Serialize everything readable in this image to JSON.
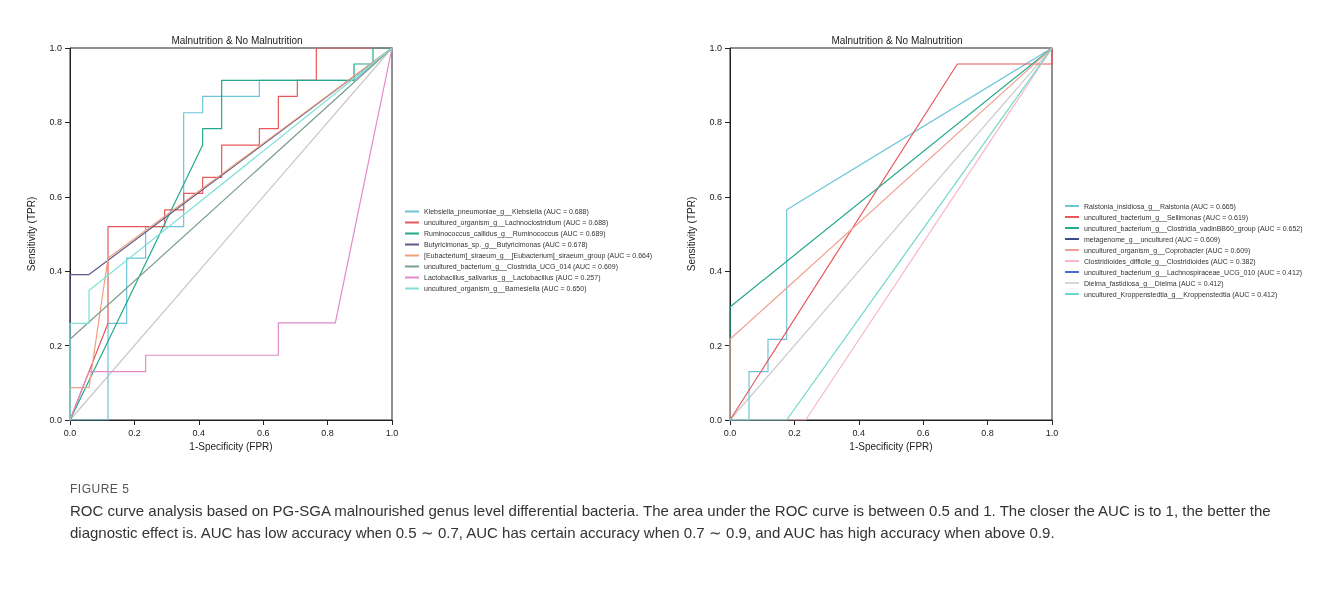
{
  "chart_data": [
    {
      "type": "line",
      "title": "Malnutrition & No Malnutrition",
      "xlabel": "1-Specificity (FPR)",
      "ylabel": "Sensitivity (TPR)",
      "xlim": [
        0,
        1
      ],
      "ylim": [
        0,
        1
      ],
      "xticks": [
        {
          "value": 0,
          "label": "0.0"
        },
        {
          "value": 0.2,
          "label": "0.2"
        },
        {
          "value": 0.4,
          "label": "0.4"
        },
        {
          "value": 0.6,
          "label": "0.6"
        },
        {
          "value": 0.8,
          "label": "0.8"
        },
        {
          "value": 1,
          "label": "1.0"
        }
      ],
      "yticks": [
        {
          "value": 0,
          "label": "0.0"
        },
        {
          "value": 0.2,
          "label": "0.2"
        },
        {
          "value": 0.4,
          "label": "0.4"
        },
        {
          "value": 0.6,
          "label": "0.6"
        },
        {
          "value": 0.8,
          "label": "0.8"
        },
        {
          "value": 1,
          "label": "1.0"
        }
      ],
      "grid": false,
      "legend": "right",
      "marker": "none",
      "line_style": "solid",
      "annotations": [
        "FIGURE 5",
        "ROC curve analysis based on PG-SGA malnourished genus level differential bacteria. The area under the ROC curve is between 0.5 and 1. The closer the AUC is to 1, the better the diagnostic effect is. AUC has low accuracy when 0.5 ∼ 0.7, AUC has certain accuracy when 0.7 ∼ 0.9, and AUC has high accuracy when above 0.9."
      ],
      "series": [
        {
          "color": "#c8c8c8",
          "x": [
            0,
            1
          ],
          "values": [
            0,
            1
          ]
        },
        {
          "name": "Klebsiella_pneumoniae_g__Klebsiella (AUC = 0.688)",
          "color": "#6cc4d8",
          "x": [
            0,
            0.118,
            0.118,
            0.176,
            0.176,
            0.235,
            0.235,
            0.353,
            0.353,
            0.412,
            0.412,
            0.588,
            0.588,
            0.882,
            1
          ],
          "values": [
            0,
            0,
            0.26,
            0.26,
            0.435,
            0.435,
            0.52,
            0.52,
            0.826,
            0.826,
            0.87,
            0.87,
            0.913,
            0.913,
            1
          ]
        },
        {
          "name": "uncultured_organism_g__Lachnoclostridium (AUC = 0.688)",
          "color": "#e8585a",
          "x": [
            0,
            0.118,
            0.118,
            0.294,
            0.294,
            0.353,
            0.353,
            0.412,
            0.412,
            0.471,
            0.471,
            0.588,
            0.588,
            0.647,
            0.647,
            0.706,
            0.706,
            0.765,
            0.765,
            1
          ],
          "values": [
            0,
            0.26,
            0.52,
            0.52,
            0.565,
            0.565,
            0.609,
            0.609,
            0.652,
            0.652,
            0.739,
            0.739,
            0.783,
            0.783,
            0.87,
            0.87,
            0.913,
            0.913,
            1,
            1
          ]
        },
        {
          "name": "Ruminococcus_callidus_g__Ruminococcus (AUC = 0.689)",
          "color": "#23a88c",
          "x": [
            0,
            0.412,
            0.412,
            0.471,
            0.471,
            0.882,
            0.882,
            0.941,
            0.941,
            1
          ],
          "values": [
            0,
            0.739,
            0.783,
            0.783,
            0.913,
            0.913,
            0.957,
            0.957,
            1,
            1
          ]
        },
        {
          "name": "Butyricimonas_sp._g__Butyricimonas (AUC = 0.678)",
          "color": "#5c5c8c",
          "x": [
            0,
            0,
            0.059,
            1
          ],
          "values": [
            0,
            0.391,
            0.391,
            1
          ]
        },
        {
          "name": "[Eubacterium]_siraeum_g__[Eubacterium]_siraeum_group (AUC = 0.664)",
          "color": "#f0a080",
          "x": [
            0,
            0,
            0.059,
            0.118,
            1
          ],
          "values": [
            0,
            0.087,
            0.087,
            0.435,
            1
          ]
        },
        {
          "name": "uncultured_bacterium_g__Clostridia_UCG_014 (AUC = 0.609)",
          "color": "#7a9e8e",
          "x": [
            0,
            0,
            1
          ],
          "values": [
            0,
            0.217,
            1
          ]
        },
        {
          "name": "Lactobacillus_salivarius_g__Lactobacillus (AUC = 0.257)",
          "color": "#e08ac8",
          "x": [
            0,
            0.059,
            0.235,
            0.235,
            0.647,
            0.647,
            0.824,
            1
          ],
          "values": [
            0,
            0.13,
            0.13,
            0.174,
            0.174,
            0.261,
            0.261,
            1
          ]
        },
        {
          "name": "uncultured_organism_g__Barnesiella (AUC = 0.650)",
          "color": "#7fe0d8",
          "x": [
            0,
            0,
            0.059,
            0.059,
            1
          ],
          "values": [
            0,
            0.26,
            0.26,
            0.348,
            1
          ]
        }
      ]
    },
    {
      "type": "line",
      "title": "Malnutrition & No Malnutrition",
      "xlabel": "1-Specificity (FPR)",
      "ylabel": "Sensitivity (TPR)",
      "xlim": [
        0,
        1
      ],
      "ylim": [
        0,
        1
      ],
      "xticks": [
        {
          "value": 0,
          "label": "0.0"
        },
        {
          "value": 0.2,
          "label": "0.2"
        },
        {
          "value": 0.4,
          "label": "0.4"
        },
        {
          "value": 0.6,
          "label": "0.6"
        },
        {
          "value": 0.8,
          "label": "0.8"
        },
        {
          "value": 1,
          "label": "1.0"
        }
      ],
      "yticks": [
        {
          "value": 0,
          "label": "0.0"
        },
        {
          "value": 0.2,
          "label": "0.2"
        },
        {
          "value": 0.4,
          "label": "0.4"
        },
        {
          "value": 0.6,
          "label": "0.6"
        },
        {
          "value": 0.8,
          "label": "0.8"
        },
        {
          "value": 1,
          "label": "1.0"
        }
      ],
      "grid": false,
      "legend": "right",
      "marker": "none",
      "line_style": "solid",
      "series": [
        {
          "color": "#cccccc",
          "x": [
            0,
            1
          ],
          "values": [
            0,
            1
          ]
        },
        {
          "name": "Ralstonia_insidiosa_g__Ralstonia (AUC = 0.665)",
          "color": "#6cc4d8",
          "x": [
            0,
            0.059,
            0.059,
            0.118,
            0.118,
            0.176,
            0.176,
            1
          ],
          "values": [
            0,
            0,
            0.13,
            0.13,
            0.217,
            0.217,
            0.565,
            1
          ]
        },
        {
          "name": "uncultured_bacterium_g__Sellimonas (AUC = 0.619)",
          "color": "#e8585a",
          "x": [
            0,
            0.706,
            1,
            1
          ],
          "values": [
            0,
            0.957,
            0.957,
            1
          ]
        },
        {
          "name": "uncultured_bacterium_g__Clostridia_vadinBB60_group (AUC = 0.652)",
          "color": "#23a88c",
          "x": [
            0,
            0,
            1
          ],
          "values": [
            0,
            0.304,
            1
          ]
        },
        {
          "name": "metagenome_g__uncultured (AUC = 0.609)",
          "color": "#3c4a8c"
        },
        {
          "name": "uncultured_organism_g__Coprobacter (AUC = 0.609)",
          "color": "#f0a090",
          "x": [
            0,
            0,
            1
          ],
          "values": [
            0,
            0.217,
            1
          ]
        },
        {
          "name": "Clostridioides_difficile_g__Clostridioides (AUC = 0.382)",
          "color": "#f4b8c8",
          "x": [
            0,
            0.235,
            1
          ],
          "values": [
            0,
            0,
            1
          ]
        },
        {
          "name": "uncultured_bacterium_g__Lachnospiraceae_UCG_010 (AUC = 0.412)",
          "color": "#4a6ad0"
        },
        {
          "name": "Dielma_fastidiosa_g__Dielma (AUC = 0.412)",
          "color": "#d8d8d8"
        },
        {
          "name": "uncultured_Kroppenstedtia_g__Kroppenstedtia (AUC = 0.412)",
          "color": "#6cd8c8",
          "x": [
            0,
            0.176,
            1
          ],
          "values": [
            0,
            0,
            1
          ]
        }
      ]
    }
  ]
}
